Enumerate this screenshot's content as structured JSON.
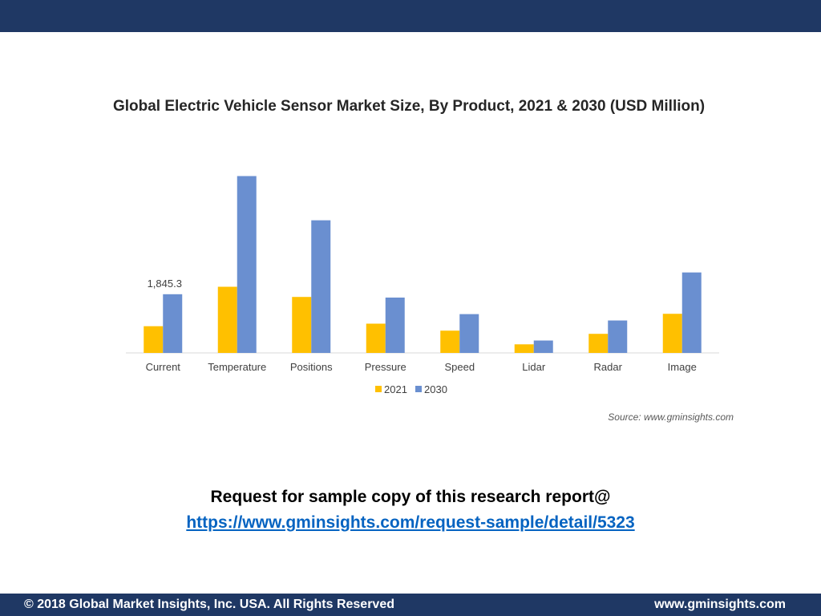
{
  "colors": {
    "bar_2021": "#ffc000",
    "bar_2030": "#6a8fd0",
    "header": "#1f3864",
    "axis": "#d9d9d9",
    "link": "#0563c1"
  },
  "chart_data": {
    "type": "bar",
    "title": "Global Electric Vehicle Sensor Market Size, By Product, 2021 & 2030 (USD Million)",
    "categories": [
      "Current",
      "Temperature",
      "Positions",
      "Pressure",
      "Speed",
      "Lidar",
      "Radar",
      "Image"
    ],
    "series": [
      {
        "name": "2021",
        "values": [
          840,
          2080,
          1760,
          920,
          700,
          270,
          600,
          1230
        ]
      },
      {
        "name": "2030",
        "values": [
          1845.3,
          5560,
          4170,
          1740,
          1220,
          390,
          1020,
          2530
        ]
      }
    ],
    "data_labels": [
      {
        "series": 1,
        "index": 0,
        "text": "1,845.3"
      }
    ],
    "ylim": [
      0,
      5800
    ],
    "xlabel": "",
    "ylabel": "",
    "legend_position": "bottom",
    "grid": false,
    "source": "Source: www.gminsights.com"
  },
  "cta": {
    "text": "Request for sample copy of this research report@",
    "link": "https://www.gminsights.com/request-sample/detail/5323"
  },
  "footer": {
    "copyright": "© 2018 Global Market Insights, Inc. USA. All Rights Reserved",
    "website": "www.gminsights.com"
  }
}
